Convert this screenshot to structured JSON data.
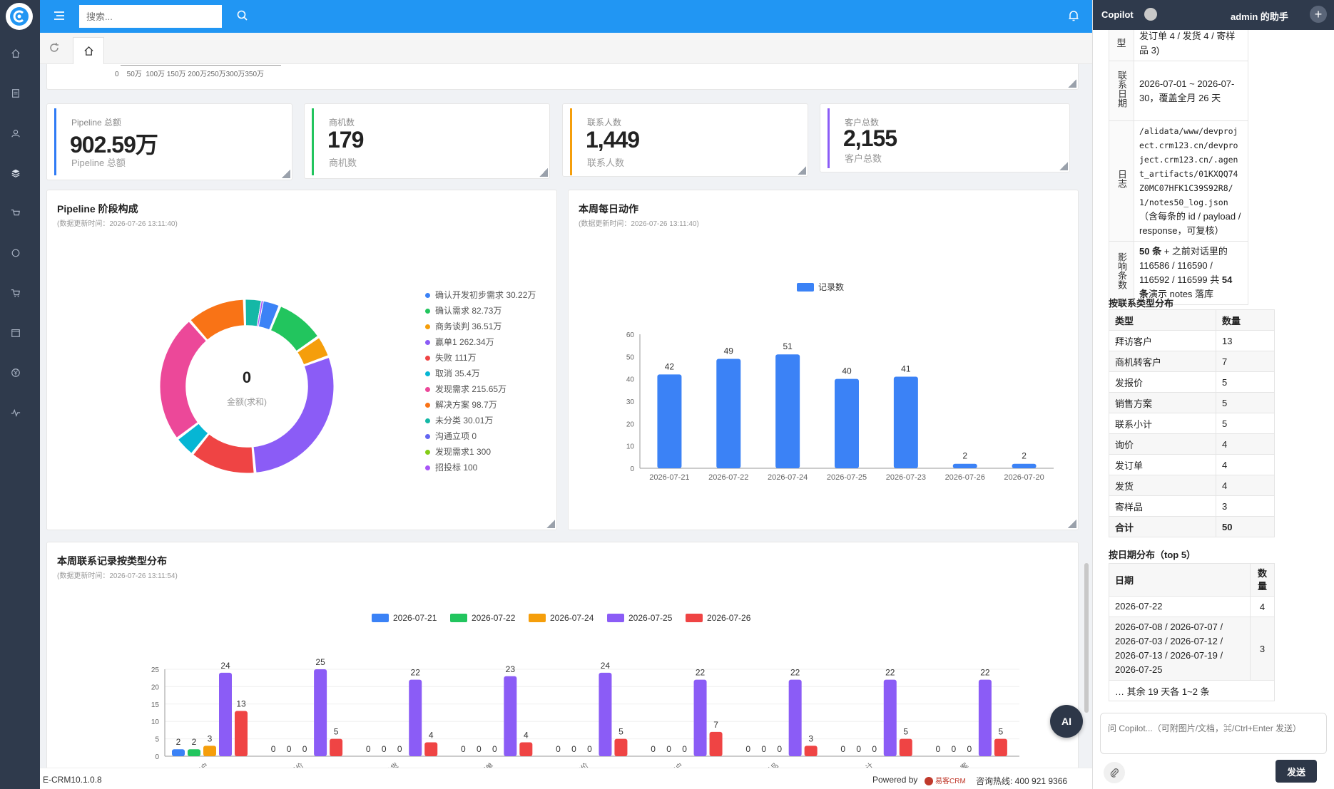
{
  "topbar": {
    "search_placeholder": "搜索..."
  },
  "partial_axis": {
    "ticks": "0    50万  100万 150万 200万250万300万350万"
  },
  "kpis": [
    {
      "title": "Pipeline 总额",
      "value": "902.59万",
      "sub": "Pipeline 总额",
      "color": "#2f7bf5"
    },
    {
      "title": "商机数",
      "value": "179",
      "sub": "商机数",
      "color": "#22c55e"
    },
    {
      "title": "联系人数",
      "value": "1,449",
      "sub": "联系人数",
      "color": "#f59e0b"
    },
    {
      "title": "客户总数",
      "value": "2,155",
      "sub": "客户总数",
      "color": "#8b5cf6"
    }
  ],
  "donut": {
    "title": "Pipeline 阶段构成",
    "subtitle": "(数据更新时间：2026-07-26 13:11:40)",
    "center_value": "0",
    "center_label": "金额(求和)",
    "legend": [
      {
        "label": "确认开发初步需求  30.22万",
        "color": "#3b82f6"
      },
      {
        "label": "确认需求  82.73万",
        "color": "#22c55e"
      },
      {
        "label": "商务谈判  36.51万",
        "color": "#f59e0b"
      },
      {
        "label": "赢单1  262.34万",
        "color": "#8b5cf6"
      },
      {
        "label": "失败  111万",
        "color": "#ef4444"
      },
      {
        "label": "取消  35.4万",
        "color": "#06b6d4"
      },
      {
        "label": "发现需求  215.65万",
        "color": "#ec4899"
      },
      {
        "label": "解决方案  98.7万",
        "color": "#f97316"
      },
      {
        "label": "未分类  30.01万",
        "color": "#14b8a6"
      },
      {
        "label": "沟通立项  0",
        "color": "#6366f1"
      },
      {
        "label": "发现需求1  300",
        "color": "#84cc16"
      },
      {
        "label": "招投标  100",
        "color": "#a855f7"
      }
    ]
  },
  "chart_data": [
    {
      "type": "pie",
      "title": "Pipeline 阶段构成",
      "categories": [
        "确认开发初步需求",
        "确认需求",
        "商务谈判",
        "赢单1",
        "失败",
        "取消",
        "发现需求",
        "解决方案",
        "未分类",
        "沟通立项",
        "发现需求1",
        "招投标"
      ],
      "values": [
        30.22,
        82.73,
        36.51,
        262.34,
        111,
        35.4,
        215.65,
        98.7,
        30.01,
        0,
        0.03,
        0.01
      ],
      "unit": "万"
    },
    {
      "type": "bar",
      "title": "本周每日动作",
      "subtitle": "(数据更新时间：2026-07-26 13:11:40)",
      "legend": "记录数",
      "categories": [
        "2026-07-21",
        "2026-07-22",
        "2026-07-24",
        "2026-07-25",
        "2026-07-23",
        "2026-07-26",
        "2026-07-20"
      ],
      "values": [
        42,
        49,
        51,
        40,
        41,
        2,
        2
      ],
      "ylim": [
        0,
        60
      ],
      "yticks": [
        0,
        10,
        20,
        30,
        40,
        50,
        60
      ],
      "color": "#3b82f6"
    },
    {
      "type": "bar",
      "title": "本周联系记录按类型分布",
      "subtitle": "(数据更新时间：2026-07-26 13:11:54)",
      "categories": [
        "拜访客户",
        "发报价",
        "发货",
        "发订单",
        "询价",
        "商机转客户",
        "寄样品",
        "联系小计",
        "销售方案"
      ],
      "series": [
        {
          "name": "2026-07-21",
          "color": "#3b82f6",
          "values": [
            2,
            0,
            0,
            0,
            0,
            0,
            0,
            0,
            0
          ]
        },
        {
          "name": "2026-07-22",
          "color": "#22c55e",
          "values": [
            2,
            0,
            0,
            0,
            0,
            0,
            0,
            0,
            0
          ]
        },
        {
          "name": "2026-07-24",
          "color": "#f59e0b",
          "values": [
            3,
            0,
            0,
            0,
            0,
            0,
            0,
            0,
            0
          ]
        },
        {
          "name": "2026-07-25",
          "color": "#8b5cf6",
          "values": [
            24,
            25,
            22,
            23,
            24,
            22,
            22,
            22,
            22
          ]
        },
        {
          "name": "2026-07-26",
          "color": "#ef4444",
          "values": [
            13,
            5,
            4,
            4,
            5,
            7,
            3,
            5,
            5
          ]
        }
      ],
      "ylim": [
        0,
        25
      ],
      "yticks": [
        0,
        5,
        10,
        15,
        20,
        25
      ]
    }
  ],
  "footer": {
    "version": "E-CRM10.1.0.8",
    "powered": "Powered by",
    "brand": "易客CRM",
    "hotline": "咨询热线: 400 921 9366"
  },
  "ai_button": "AI",
  "copilot": {
    "title": "Copilot",
    "user": "admin 的助手",
    "kv": [
      {
        "k": "型",
        "v": "发订单 4 / 发货 4 / 寄样品 3)"
      },
      {
        "k": "联系日期",
        "v": "2026-07-01 ~ 2026-07-30，覆盖全月 26 天"
      },
      {
        "k": "日志",
        "v_mono": "/alidata/www/devproject.crm123.cn/devproject.crm123.cn/.agent_artifacts/01KXQQ74Z0MC07HFK1C39S92R8/1/notes50_log.json",
        "v_tail": "（含每条的 id / payload / response，可复核）"
      },
      {
        "k": "影响条数",
        "v_b1": "50 条",
        "v_mid": " + 之前对话里的 116586 / 116590 / 116592 / 116599 共 ",
        "v_b2": "54 条",
        "v_end": "演示 notes 落库"
      }
    ],
    "type_section": "按联系类型分布",
    "type_head": [
      "类型",
      "数量"
    ],
    "type_rows": [
      [
        "拜访客户",
        "13"
      ],
      [
        "商机转客户",
        "7"
      ],
      [
        "发报价",
        "5"
      ],
      [
        "销售方案",
        "5"
      ],
      [
        "联系小计",
        "5"
      ],
      [
        "询价",
        "4"
      ],
      [
        "发订单",
        "4"
      ],
      [
        "发货",
        "4"
      ],
      [
        "寄样品",
        "3"
      ],
      [
        "合计",
        "50"
      ]
    ],
    "date_section": "按日期分布（top 5）",
    "date_head": [
      "日期",
      "数量"
    ],
    "date_rows": [
      [
        "2026-07-22",
        "4"
      ],
      [
        "2026-07-08 / 2026-07-07 / 2026-07-03 / 2026-07-12 / 2026-07-13 / 2026-07-19 / 2026-07-25",
        "3"
      ]
    ],
    "date_tail": "… 其余 19 天各 1~2 条",
    "input_placeholder": "问 Copilot...（可附图片/文档，⌘/Ctrl+Enter 发送）",
    "send_label": "发送"
  }
}
